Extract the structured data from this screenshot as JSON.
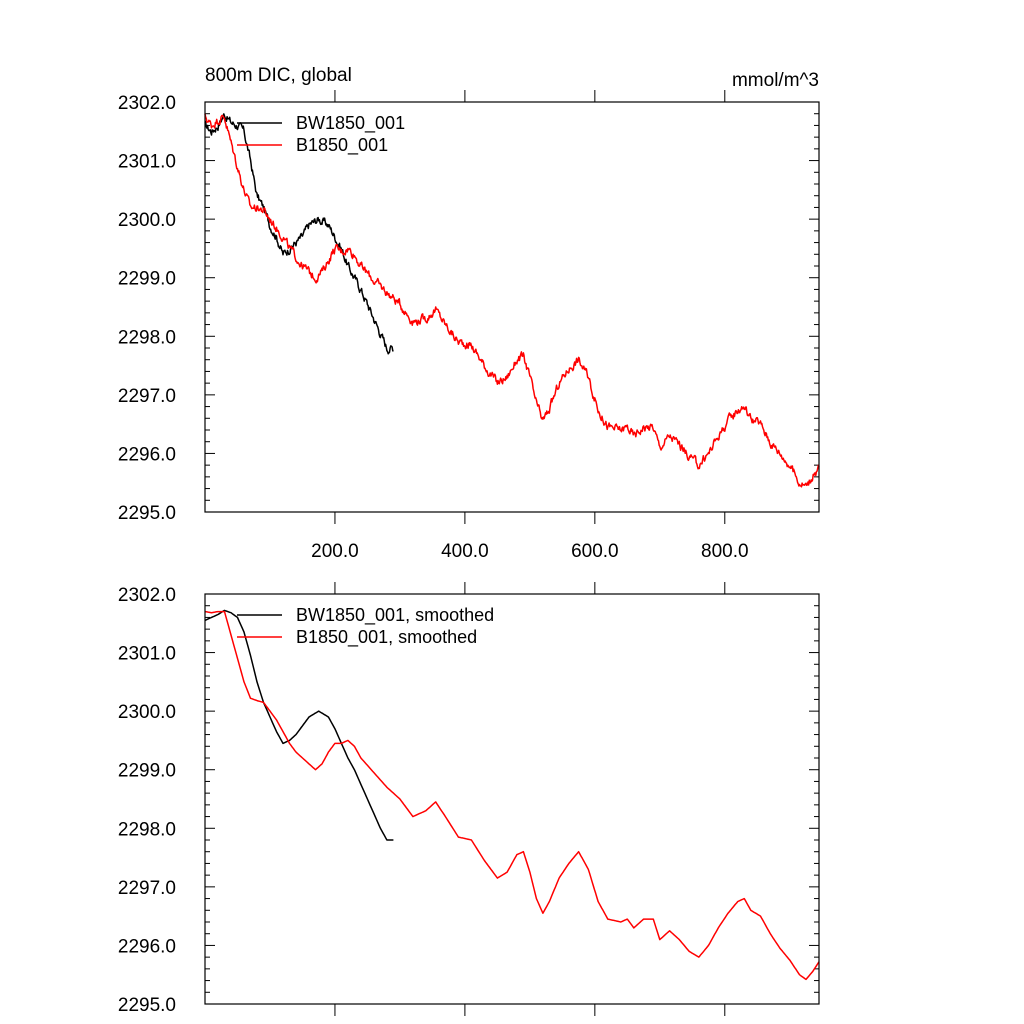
{
  "chart_data": [
    {
      "type": "line",
      "title": "800m DIC, global",
      "units": "mmol/m^3",
      "xlim": [
        0,
        945
      ],
      "ylim": [
        2295.0,
        2302.0
      ],
      "y_ticks": [
        "2295.0",
        "2296.0",
        "2297.0",
        "2298.0",
        "2299.0",
        "2300.0",
        "2301.0",
        "2302.0"
      ],
      "x_ticks": [
        "200.0",
        "400.0",
        "600.0",
        "800.0"
      ],
      "grid": false,
      "legend_position": "top-left",
      "series": [
        {
          "name": "BW1850_001",
          "color": "#000000",
          "noisy": true,
          "points": [
            [
              0,
              2301.6
            ],
            [
              10,
              2301.5
            ],
            [
              20,
              2301.6
            ],
            [
              30,
              2301.8
            ],
            [
              40,
              2301.65
            ],
            [
              50,
              2301.6
            ],
            [
              60,
              2301.5
            ],
            [
              70,
              2301.0
            ],
            [
              80,
              2300.4
            ],
            [
              90,
              2300.2
            ],
            [
              100,
              2299.9
            ],
            [
              110,
              2299.7
            ],
            [
              120,
              2299.4
            ],
            [
              130,
              2299.5
            ],
            [
              140,
              2299.6
            ],
            [
              150,
              2299.7
            ],
            [
              160,
              2299.9
            ],
            [
              175,
              2300.0
            ],
            [
              190,
              2299.9
            ],
            [
              200,
              2299.7
            ],
            [
              210,
              2299.5
            ],
            [
              220,
              2299.2
            ],
            [
              230,
              2299.0
            ],
            [
              240,
              2298.8
            ],
            [
              250,
              2298.55
            ],
            [
              260,
              2298.3
            ],
            [
              270,
              2298.05
            ],
            [
              280,
              2297.8
            ],
            [
              290,
              2297.8
            ]
          ]
        },
        {
          "name": "B1850_001",
          "color": "#ff0000",
          "noisy": true,
          "points": [
            [
              0,
              2301.75
            ],
            [
              10,
              2301.6
            ],
            [
              20,
              2301.7
            ],
            [
              30,
              2301.75
            ],
            [
              40,
              2301.3
            ],
            [
              50,
              2300.9
            ],
            [
              60,
              2300.5
            ],
            [
              70,
              2300.2
            ],
            [
              80,
              2300.2
            ],
            [
              90,
              2300.15
            ],
            [
              100,
              2300.0
            ],
            [
              110,
              2299.85
            ],
            [
              120,
              2299.7
            ],
            [
              130,
              2299.5
            ],
            [
              140,
              2299.35
            ],
            [
              150,
              2299.2
            ],
            [
              160,
              2299.1
            ],
            [
              170,
              2299.0
            ],
            [
              180,
              2299.1
            ],
            [
              190,
              2299.3
            ],
            [
              200,
              2299.5
            ],
            [
              210,
              2299.45
            ],
            [
              220,
              2299.5
            ],
            [
              230,
              2299.4
            ],
            [
              240,
              2299.2
            ],
            [
              260,
              2298.95
            ],
            [
              280,
              2298.75
            ],
            [
              300,
              2298.55
            ],
            [
              320,
              2298.25
            ],
            [
              340,
              2298.3
            ],
            [
              355,
              2298.45
            ],
            [
              370,
              2298.2
            ],
            [
              390,
              2297.9
            ],
            [
              410,
              2297.85
            ],
            [
              430,
              2297.5
            ],
            [
              450,
              2297.2
            ],
            [
              465,
              2297.3
            ],
            [
              480,
              2297.6
            ],
            [
              490,
              2297.65
            ],
            [
              500,
              2297.3
            ],
            [
              510,
              2296.85
            ],
            [
              520,
              2296.55
            ],
            [
              530,
              2296.75
            ],
            [
              545,
              2297.2
            ],
            [
              560,
              2297.45
            ],
            [
              575,
              2297.6
            ],
            [
              590,
              2297.3
            ],
            [
              605,
              2296.75
            ],
            [
              620,
              2296.45
            ],
            [
              640,
              2296.4
            ],
            [
              650,
              2296.45
            ],
            [
              660,
              2296.3
            ],
            [
              675,
              2296.45
            ],
            [
              690,
              2296.45
            ],
            [
              700,
              2296.1
            ],
            [
              715,
              2296.3
            ],
            [
              730,
              2296.15
            ],
            [
              745,
              2295.95
            ],
            [
              760,
              2295.8
            ],
            [
              775,
              2296.0
            ],
            [
              790,
              2296.3
            ],
            [
              805,
              2296.55
            ],
            [
              820,
              2296.75
            ],
            [
              830,
              2296.8
            ],
            [
              840,
              2296.6
            ],
            [
              855,
              2296.5
            ],
            [
              870,
              2296.2
            ],
            [
              885,
              2296.0
            ],
            [
              900,
              2295.8
            ],
            [
              915,
              2295.5
            ],
            [
              925,
              2295.45
            ],
            [
              935,
              2295.6
            ],
            [
              945,
              2295.75
            ]
          ]
        }
      ]
    },
    {
      "type": "line",
      "xlim": [
        0,
        945
      ],
      "ylim": [
        2295.0,
        2302.0
      ],
      "y_ticks": [
        "2295.0",
        "2296.0",
        "2297.0",
        "2298.0",
        "2299.0",
        "2300.0",
        "2301.0",
        "2302.0"
      ],
      "grid": false,
      "legend_position": "top-left",
      "series": [
        {
          "name": "BW1850_001, smoothed",
          "color": "#000000",
          "noisy": false,
          "points": [
            [
              0,
              2301.55
            ],
            [
              10,
              2301.6
            ],
            [
              20,
              2301.65
            ],
            [
              30,
              2301.72
            ],
            [
              40,
              2301.68
            ],
            [
              50,
              2301.6
            ],
            [
              60,
              2301.35
            ],
            [
              70,
              2300.95
            ],
            [
              80,
              2300.5
            ],
            [
              90,
              2300.15
            ],
            [
              100,
              2299.9
            ],
            [
              110,
              2299.65
            ],
            [
              120,
              2299.45
            ],
            [
              130,
              2299.5
            ],
            [
              140,
              2299.6
            ],
            [
              150,
              2299.75
            ],
            [
              160,
              2299.9
            ],
            [
              175,
              2300.0
            ],
            [
              190,
              2299.9
            ],
            [
              200,
              2299.7
            ],
            [
              210,
              2299.45
            ],
            [
              220,
              2299.2
            ],
            [
              230,
              2299.0
            ],
            [
              240,
              2298.75
            ],
            [
              250,
              2298.5
            ],
            [
              260,
              2298.25
            ],
            [
              270,
              2298.0
            ],
            [
              280,
              2297.8
            ],
            [
              290,
              2297.8
            ]
          ]
        },
        {
          "name": "B1850_001, smoothed",
          "color": "#ff0000",
          "noisy": false,
          "points": [
            [
              0,
              2301.7
            ],
            [
              10,
              2301.68
            ],
            [
              20,
              2301.7
            ],
            [
              30,
              2301.7
            ],
            [
              40,
              2301.3
            ],
            [
              50,
              2300.9
            ],
            [
              60,
              2300.5
            ],
            [
              70,
              2300.22
            ],
            [
              80,
              2300.18
            ],
            [
              90,
              2300.15
            ],
            [
              100,
              2300.0
            ],
            [
              110,
              2299.85
            ],
            [
              120,
              2299.65
            ],
            [
              130,
              2299.45
            ],
            [
              140,
              2299.3
            ],
            [
              150,
              2299.2
            ],
            [
              160,
              2299.1
            ],
            [
              170,
              2299.0
            ],
            [
              180,
              2299.1
            ],
            [
              190,
              2299.3
            ],
            [
              200,
              2299.45
            ],
            [
              210,
              2299.45
            ],
            [
              220,
              2299.5
            ],
            [
              230,
              2299.4
            ],
            [
              240,
              2299.2
            ],
            [
              260,
              2298.95
            ],
            [
              280,
              2298.7
            ],
            [
              300,
              2298.5
            ],
            [
              320,
              2298.2
            ],
            [
              340,
              2298.3
            ],
            [
              355,
              2298.45
            ],
            [
              370,
              2298.2
            ],
            [
              390,
              2297.85
            ],
            [
              410,
              2297.8
            ],
            [
              430,
              2297.45
            ],
            [
              450,
              2297.15
            ],
            [
              465,
              2297.25
            ],
            [
              480,
              2297.55
            ],
            [
              490,
              2297.6
            ],
            [
              500,
              2297.25
            ],
            [
              510,
              2296.8
            ],
            [
              520,
              2296.55
            ],
            [
              530,
              2296.75
            ],
            [
              545,
              2297.15
            ],
            [
              560,
              2297.4
            ],
            [
              575,
              2297.6
            ],
            [
              590,
              2297.3
            ],
            [
              605,
              2296.75
            ],
            [
              620,
              2296.45
            ],
            [
              640,
              2296.4
            ],
            [
              650,
              2296.45
            ],
            [
              660,
              2296.3
            ],
            [
              675,
              2296.45
            ],
            [
              690,
              2296.45
            ],
            [
              700,
              2296.1
            ],
            [
              715,
              2296.25
            ],
            [
              730,
              2296.1
            ],
            [
              745,
              2295.9
            ],
            [
              760,
              2295.8
            ],
            [
              775,
              2296.0
            ],
            [
              790,
              2296.3
            ],
            [
              805,
              2296.55
            ],
            [
              820,
              2296.75
            ],
            [
              830,
              2296.8
            ],
            [
              840,
              2296.6
            ],
            [
              855,
              2296.5
            ],
            [
              870,
              2296.2
            ],
            [
              885,
              2295.95
            ],
            [
              900,
              2295.75
            ],
            [
              915,
              2295.5
            ],
            [
              925,
              2295.42
            ],
            [
              935,
              2295.55
            ],
            [
              945,
              2295.72
            ]
          ]
        }
      ]
    }
  ]
}
